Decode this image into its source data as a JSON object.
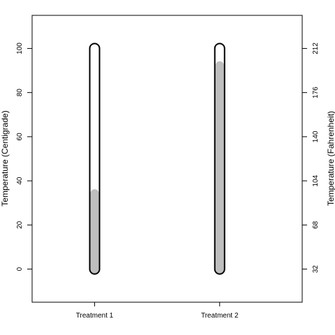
{
  "chart_data": {
    "type": "bar",
    "subtype": "thermometer",
    "categories": [
      "Treatment 1",
      "Treatment 2"
    ],
    "values": [
      34,
      92
    ],
    "ylabel": "Temperature (Centigrade)",
    "ylabel_right": "Temperature (Fahrenheit)",
    "ylim": [
      -15,
      115
    ],
    "thermometer_range": [
      0,
      100
    ],
    "yticks": [
      0,
      20,
      40,
      60,
      80,
      100
    ],
    "yticks_right_labels": [
      "32",
      "68",
      "104",
      "140",
      "176",
      "212"
    ],
    "xlim": [
      0.5,
      2.66
    ],
    "grid": false,
    "legend": "none",
    "fill_color": "#bebebe",
    "outline_color": "#000000"
  }
}
